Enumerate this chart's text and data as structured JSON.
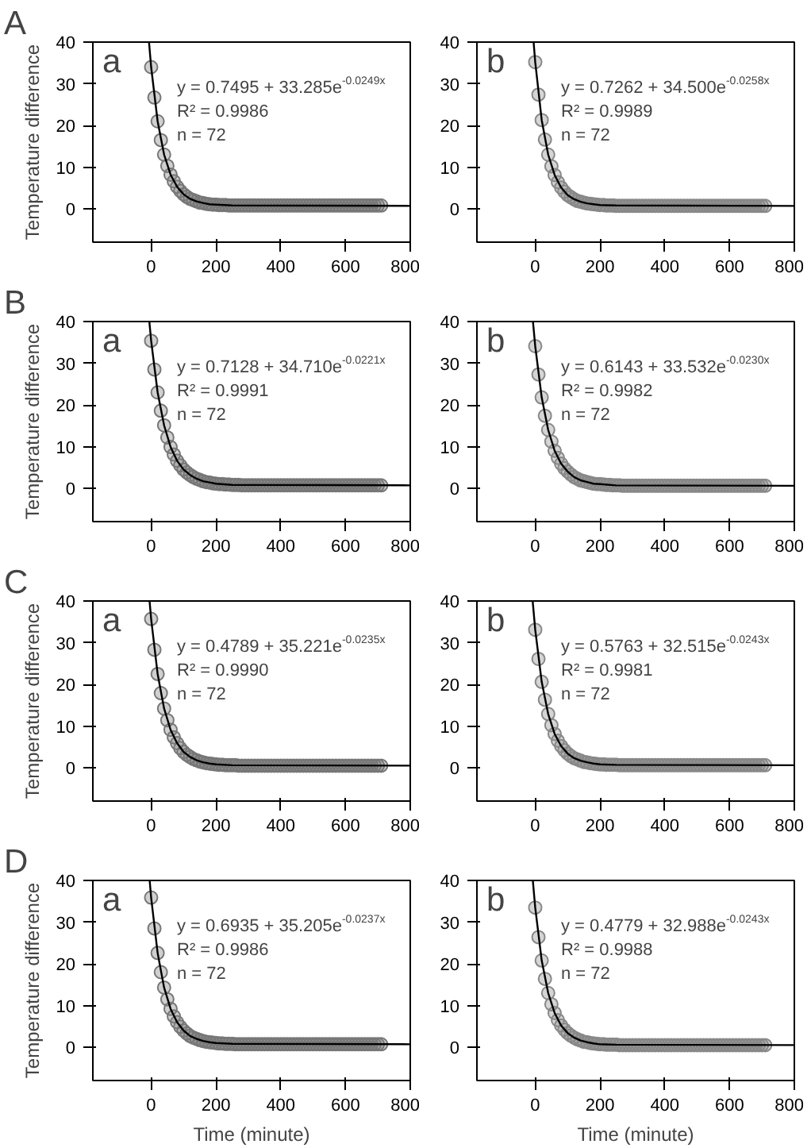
{
  "chart_data": [
    {
      "type": "scatter",
      "title": "a",
      "subtitle": "A",
      "ylabel": "Temperature difference",
      "marker": "circle",
      "xlim": [
        -180,
        800
      ],
      "ylim": [
        -8,
        40
      ],
      "xticks": [
        0,
        200,
        400,
        600,
        800
      ],
      "yticks": [
        0,
        10,
        20,
        30,
        40
      ],
      "x": [
        0,
        10,
        20,
        30,
        40,
        50,
        60,
        70,
        80,
        90,
        100,
        110,
        120,
        130,
        140,
        150,
        160,
        170,
        180,
        190,
        200,
        210,
        220,
        230,
        240,
        250,
        260,
        270,
        280,
        290,
        300,
        310,
        320,
        330,
        340,
        350,
        360,
        370,
        380,
        390,
        400,
        410,
        420,
        430,
        440,
        450,
        460,
        470,
        480,
        490,
        500,
        510,
        520,
        530,
        540,
        550,
        560,
        570,
        580,
        590,
        600,
        610,
        620,
        630,
        640,
        650,
        660,
        670,
        680,
        690,
        700,
        710
      ],
      "series": [
        {
          "color": "#777777",
          "values": [
            34.0,
            26.7,
            21.0,
            16.5,
            13.0,
            10.3,
            8.2,
            6.6,
            5.3,
            4.3,
            3.5,
            2.9,
            2.4,
            2.1,
            1.8,
            1.5,
            1.4,
            1.2,
            1.1,
            1.0,
            1.0,
            0.9,
            0.9,
            0.9,
            0.8,
            0.8,
            0.8,
            0.8,
            0.8,
            0.8,
            0.8,
            0.8,
            0.8,
            0.8,
            0.8,
            0.8,
            0.8,
            0.8,
            0.8,
            0.8,
            0.8,
            0.8,
            0.8,
            0.8,
            0.8,
            0.8,
            0.8,
            0.8,
            0.8,
            0.8,
            0.8,
            0.8,
            0.8,
            0.8,
            0.8,
            0.8,
            0.8,
            0.8,
            0.8,
            0.8,
            0.8,
            0.8,
            0.8,
            0.8,
            0.8,
            0.8,
            0.8,
            0.8,
            0.8,
            0.8,
            0.8,
            0.8
          ]
        },
        {
          "type": "line",
          "marker": "none",
          "color": "#000000",
          "x": [
            -6.6,
            0,
            20,
            40,
            60,
            80,
            100,
            120,
            140,
            160,
            180,
            200,
            250,
            800
          ],
          "values": [
            40,
            34.0,
            21.0,
            13.0,
            8.2,
            5.3,
            3.5,
            2.4,
            1.8,
            1.4,
            1.1,
            1.0,
            0.8,
            0.7
          ]
        }
      ],
      "annotations": [
        "y = 0.7495 + 33.285e$^{-0.0249x}$",
        "R² = 0.9986",
        "n = 72"
      ]
    },
    {
      "type": "scatter",
      "title": "b",
      "marker": "circle",
      "xlim": [
        -180,
        800
      ],
      "ylim": [
        -8,
        40
      ],
      "xticks": [
        0,
        200,
        400,
        600,
        800
      ],
      "yticks": [
        0,
        10,
        20,
        30,
        40
      ],
      "x": [
        0,
        10,
        20,
        30,
        40,
        50,
        60,
        70,
        80,
        90,
        100,
        110,
        120,
        130,
        140,
        150,
        160,
        170,
        180,
        190,
        200,
        210,
        220,
        230,
        240,
        250,
        260,
        270,
        280,
        290,
        300,
        310,
        320,
        330,
        340,
        350,
        360,
        370,
        380,
        390,
        400,
        410,
        420,
        430,
        440,
        450,
        460,
        470,
        480,
        490,
        500,
        510,
        520,
        530,
        540,
        550,
        560,
        570,
        580,
        590,
        600,
        610,
        620,
        630,
        640,
        650,
        660,
        670,
        680,
        690,
        700,
        710
      ],
      "series": [
        {
          "color": "#888888",
          "values": [
            35.2,
            27.4,
            21.3,
            16.6,
            13.0,
            10.2,
            8.1,
            6.4,
            5.1,
            4.1,
            3.3,
            2.8,
            2.3,
            1.9,
            1.7,
            1.5,
            1.3,
            1.2,
            1.1,
            1.0,
            0.9,
            0.9,
            0.8,
            0.8,
            0.8,
            0.7,
            0.7,
            0.7,
            0.7,
            0.7,
            0.7,
            0.7,
            0.7,
            0.7,
            0.7,
            0.7,
            0.7,
            0.7,
            0.7,
            0.7,
            0.7,
            0.7,
            0.7,
            0.7,
            0.7,
            0.7,
            0.7,
            0.7,
            0.7,
            0.7,
            0.7,
            0.7,
            0.7,
            0.7,
            0.7,
            0.7,
            0.7,
            0.7,
            0.7,
            0.7,
            0.7,
            0.7,
            0.7,
            0.7,
            0.7,
            0.7,
            0.7,
            0.7,
            0.7,
            0.7,
            0.7,
            0.7
          ]
        },
        {
          "type": "line",
          "marker": "none",
          "color": "#000000",
          "x": [
            -5.0,
            0,
            20,
            40,
            60,
            80,
            100,
            120,
            140,
            160,
            180,
            200,
            250,
            800
          ],
          "values": [
            40,
            35.2,
            21.3,
            13.0,
            8.1,
            5.1,
            3.3,
            2.3,
            1.7,
            1.3,
            1.1,
            0.9,
            0.8,
            0.7
          ]
        }
      ],
      "annotations": [
        "y = 0.7262 + 34.500e$^{-0.0258x}$",
        "R² = 0.9989",
        "n = 72"
      ]
    },
    {
      "type": "scatter",
      "title": "a",
      "subtitle": "B",
      "ylabel": "Temperature difference",
      "marker": "circle",
      "xlim": [
        -180,
        800
      ],
      "ylim": [
        -8,
        40
      ],
      "xticks": [
        0,
        200,
        400,
        600,
        800
      ],
      "yticks": [
        0,
        10,
        20,
        30,
        40
      ],
      "x": [
        0,
        10,
        20,
        30,
        40,
        50,
        60,
        70,
        80,
        90,
        100,
        110,
        120,
        130,
        140,
        150,
        160,
        170,
        180,
        190,
        200,
        210,
        220,
        230,
        240,
        250,
        260,
        270,
        280,
        290,
        300,
        310,
        320,
        330,
        340,
        350,
        360,
        370,
        380,
        390,
        400,
        410,
        420,
        430,
        440,
        450,
        460,
        470,
        480,
        490,
        500,
        510,
        520,
        530,
        540,
        550,
        560,
        570,
        580,
        590,
        600,
        610,
        620,
        630,
        640,
        650,
        660,
        670,
        680,
        690,
        700,
        710
      ],
      "series": [
        {
          "color": "#777777",
          "values": [
            35.4,
            28.5,
            23.0,
            18.6,
            15.1,
            12.2,
            9.9,
            8.1,
            6.6,
            5.5,
            4.5,
            3.8,
            3.2,
            2.7,
            2.3,
            2.0,
            1.7,
            1.5,
            1.4,
            1.2,
            1.1,
            1.0,
            1.0,
            0.9,
            0.9,
            0.8,
            0.8,
            0.8,
            0.7,
            0.7,
            0.7,
            0.7,
            0.7,
            0.7,
            0.7,
            0.7,
            0.7,
            0.7,
            0.7,
            0.7,
            0.7,
            0.7,
            0.7,
            0.7,
            0.7,
            0.7,
            0.7,
            0.7,
            0.7,
            0.7,
            0.7,
            0.7,
            0.7,
            0.7,
            0.7,
            0.7,
            0.7,
            0.7,
            0.7,
            0.7,
            0.7,
            0.7,
            0.7,
            0.7,
            0.7,
            0.7,
            0.7,
            0.7,
            0.7,
            0.7,
            0.7,
            0.7
          ]
        },
        {
          "type": "line",
          "marker": "none",
          "color": "#000000",
          "x": [
            -5.6,
            0,
            20,
            40,
            60,
            80,
            100,
            120,
            140,
            160,
            180,
            200,
            250,
            800
          ],
          "values": [
            40,
            35.4,
            23.0,
            15.1,
            9.9,
            6.6,
            4.5,
            3.2,
            2.3,
            1.7,
            1.4,
            1.1,
            0.8,
            0.7
          ]
        }
      ],
      "annotations": [
        "y = 0.7128 + 34.710e$^{-0.0221x}$",
        "R² = 0.9991",
        "n = 72"
      ]
    },
    {
      "type": "scatter",
      "title": "b",
      "marker": "circle",
      "xlim": [
        -180,
        800
      ],
      "ylim": [
        -8,
        40
      ],
      "xticks": [
        0,
        200,
        400,
        600,
        800
      ],
      "yticks": [
        0,
        10,
        20,
        30,
        40
      ],
      "x": [
        0,
        10,
        20,
        30,
        40,
        50,
        60,
        70,
        80,
        90,
        100,
        110,
        120,
        130,
        140,
        150,
        160,
        170,
        180,
        190,
        200,
        210,
        220,
        230,
        240,
        250,
        260,
        270,
        280,
        290,
        300,
        310,
        320,
        330,
        340,
        350,
        360,
        370,
        380,
        390,
        400,
        410,
        420,
        430,
        440,
        450,
        460,
        470,
        480,
        490,
        500,
        510,
        520,
        530,
        540,
        550,
        560,
        570,
        580,
        590,
        600,
        610,
        620,
        630,
        640,
        650,
        660,
        670,
        680,
        690,
        700,
        710
      ],
      "series": [
        {
          "color": "#888888",
          "values": [
            34.1,
            27.3,
            21.8,
            17.4,
            14.0,
            11.2,
            9.0,
            7.3,
            5.9,
            4.8,
            4.0,
            3.3,
            2.7,
            2.3,
            1.9,
            1.7,
            1.5,
            1.3,
            1.1,
            1.0,
            1.0,
            0.9,
            0.8,
            0.8,
            0.7,
            0.7,
            0.7,
            0.6,
            0.6,
            0.6,
            0.6,
            0.6,
            0.6,
            0.6,
            0.6,
            0.6,
            0.6,
            0.6,
            0.6,
            0.6,
            0.6,
            0.6,
            0.6,
            0.6,
            0.6,
            0.6,
            0.6,
            0.6,
            0.6,
            0.6,
            0.6,
            0.6,
            0.6,
            0.6,
            0.6,
            0.6,
            0.6,
            0.6,
            0.6,
            0.6,
            0.6,
            0.6,
            0.6,
            0.6,
            0.6,
            0.6,
            0.6,
            0.6,
            0.6,
            0.6,
            0.6,
            0.6
          ]
        },
        {
          "type": "line",
          "marker": "none",
          "color": "#000000",
          "x": [
            -7.0,
            0,
            20,
            40,
            60,
            80,
            100,
            120,
            140,
            160,
            180,
            200,
            250,
            800
          ],
          "values": [
            40,
            34.1,
            21.8,
            14.0,
            9.0,
            5.9,
            4.0,
            2.7,
            1.9,
            1.5,
            1.1,
            1.0,
            0.7,
            0.6
          ]
        }
      ],
      "annotations": [
        "y = 0.6143 + 33.532e$^{-0.0230x}$",
        "R² = 0.9982",
        "n = 72"
      ]
    },
    {
      "type": "scatter",
      "title": "a",
      "subtitle": "C",
      "ylabel": "Temperature difference",
      "marker": "circle",
      "xlim": [
        -180,
        800
      ],
      "ylim": [
        -8,
        40
      ],
      "xticks": [
        0,
        200,
        400,
        600,
        800
      ],
      "yticks": [
        0,
        10,
        20,
        30,
        40
      ],
      "x": [
        0,
        10,
        20,
        30,
        40,
        50,
        60,
        70,
        80,
        90,
        100,
        110,
        120,
        130,
        140,
        150,
        160,
        170,
        180,
        190,
        200,
        210,
        220,
        230,
        240,
        250,
        260,
        270,
        280,
        290,
        300,
        310,
        320,
        330,
        340,
        350,
        360,
        370,
        380,
        390,
        400,
        410,
        420,
        430,
        440,
        450,
        460,
        470,
        480,
        490,
        500,
        510,
        520,
        530,
        540,
        550,
        560,
        570,
        580,
        590,
        600,
        610,
        620,
        630,
        640,
        650,
        660,
        670,
        680,
        690,
        700,
        710
      ],
      "series": [
        {
          "color": "#777777",
          "values": [
            35.7,
            28.3,
            22.5,
            17.9,
            14.2,
            11.4,
            9.1,
            7.3,
            5.9,
            4.7,
            3.8,
            3.1,
            2.6,
            2.1,
            1.8,
            1.5,
            1.3,
            1.1,
            1.0,
            0.9,
            0.8,
            0.7,
            0.7,
            0.6,
            0.6,
            0.6,
            0.6,
            0.5,
            0.5,
            0.5,
            0.5,
            0.5,
            0.5,
            0.5,
            0.5,
            0.5,
            0.5,
            0.5,
            0.5,
            0.5,
            0.5,
            0.5,
            0.5,
            0.5,
            0.5,
            0.5,
            0.5,
            0.5,
            0.5,
            0.5,
            0.5,
            0.5,
            0.5,
            0.5,
            0.5,
            0.5,
            0.5,
            0.5,
            0.5,
            0.5,
            0.5,
            0.5,
            0.5,
            0.5,
            0.5,
            0.5,
            0.5,
            0.5,
            0.5,
            0.5,
            0.5,
            0.5
          ]
        },
        {
          "type": "line",
          "marker": "none",
          "color": "#000000",
          "x": [
            -4.9,
            0,
            20,
            40,
            60,
            80,
            100,
            120,
            140,
            160,
            180,
            200,
            250,
            800
          ],
          "values": [
            40,
            35.7,
            22.5,
            14.2,
            9.1,
            5.9,
            3.8,
            2.6,
            1.8,
            1.3,
            1.0,
            0.8,
            0.6,
            0.5
          ]
        }
      ],
      "annotations": [
        "y = 0.4789 + 35.221e$^{-0.0235x}$",
        "R² = 0.9990",
        "n = 72"
      ]
    },
    {
      "type": "scatter",
      "title": "b",
      "marker": "circle",
      "xlim": [
        -180,
        800
      ],
      "ylim": [
        -8,
        40
      ],
      "xticks": [
        0,
        200,
        400,
        600,
        800
      ],
      "yticks": [
        0,
        10,
        20,
        30,
        40
      ],
      "x": [
        0,
        10,
        20,
        30,
        40,
        50,
        60,
        70,
        80,
        90,
        100,
        110,
        120,
        130,
        140,
        150,
        160,
        170,
        180,
        190,
        200,
        210,
        220,
        230,
        240,
        250,
        260,
        270,
        280,
        290,
        300,
        310,
        320,
        330,
        340,
        350,
        360,
        370,
        380,
        390,
        400,
        410,
        420,
        430,
        440,
        450,
        460,
        470,
        480,
        490,
        500,
        510,
        520,
        530,
        540,
        550,
        560,
        570,
        580,
        590,
        600,
        610,
        620,
        630,
        640,
        650,
        660,
        670,
        680,
        690,
        700,
        710
      ],
      "series": [
        {
          "color": "#888888",
          "values": [
            33.1,
            26.1,
            20.6,
            16.3,
            12.9,
            10.2,
            8.1,
            6.5,
            5.2,
            4.2,
            3.4,
            2.8,
            2.3,
            2.0,
            1.7,
            1.4,
            1.3,
            1.1,
            1.0,
            0.9,
            0.8,
            0.8,
            0.7,
            0.7,
            0.7,
            0.7,
            0.6,
            0.6,
            0.6,
            0.6,
            0.6,
            0.6,
            0.6,
            0.6,
            0.6,
            0.6,
            0.6,
            0.6,
            0.6,
            0.6,
            0.6,
            0.6,
            0.6,
            0.6,
            0.6,
            0.6,
            0.6,
            0.6,
            0.6,
            0.6,
            0.6,
            0.6,
            0.6,
            0.6,
            0.6,
            0.6,
            0.6,
            0.6,
            0.6,
            0.6,
            0.6,
            0.6,
            0.6,
            0.6,
            0.6,
            0.6,
            0.6,
            0.6,
            0.6,
            0.6,
            0.6,
            0.6
          ]
        },
        {
          "type": "line",
          "marker": "none",
          "color": "#000000",
          "x": [
            -7.9,
            0,
            20,
            40,
            60,
            80,
            100,
            120,
            140,
            160,
            180,
            200,
            250,
            800
          ],
          "values": [
            40,
            33.1,
            20.6,
            12.9,
            8.1,
            5.2,
            3.4,
            2.3,
            1.7,
            1.3,
            1.0,
            0.8,
            0.7,
            0.6
          ]
        }
      ],
      "annotations": [
        "y = 0.5763 + 32.515e$^{-0.0243x}$",
        "R² = 0.9981",
        "n = 72"
      ]
    },
    {
      "type": "scatter",
      "title": "a",
      "subtitle": "D",
      "xlabel": "Time (minute)",
      "ylabel": "Temperature difference",
      "marker": "circle",
      "xlim": [
        -180,
        800
      ],
      "ylim": [
        -8,
        40
      ],
      "xticks": [
        0,
        200,
        400,
        600,
        800
      ],
      "yticks": [
        0,
        10,
        20,
        30,
        40
      ],
      "x": [
        0,
        10,
        20,
        30,
        40,
        50,
        60,
        70,
        80,
        90,
        100,
        110,
        120,
        130,
        140,
        150,
        160,
        170,
        180,
        190,
        200,
        210,
        220,
        230,
        240,
        250,
        260,
        270,
        280,
        290,
        300,
        310,
        320,
        330,
        340,
        350,
        360,
        370,
        380,
        390,
        400,
        410,
        420,
        430,
        440,
        450,
        460,
        470,
        480,
        490,
        500,
        510,
        520,
        530,
        540,
        550,
        560,
        570,
        580,
        590,
        600,
        610,
        620,
        630,
        640,
        650,
        660,
        670,
        680,
        690,
        700,
        710
      ],
      "series": [
        {
          "color": "#777777",
          "values": [
            35.9,
            28.5,
            22.6,
            18.0,
            14.3,
            11.5,
            9.2,
            7.4,
            6.0,
            4.9,
            4.0,
            3.3,
            2.7,
            2.3,
            2.0,
            1.7,
            1.5,
            1.3,
            1.2,
            1.1,
            1.0,
            0.9,
            0.9,
            0.8,
            0.8,
            0.8,
            0.7,
            0.7,
            0.7,
            0.7,
            0.7,
            0.7,
            0.7,
            0.7,
            0.7,
            0.7,
            0.7,
            0.7,
            0.7,
            0.7,
            0.7,
            0.7,
            0.7,
            0.7,
            0.7,
            0.7,
            0.7,
            0.7,
            0.7,
            0.7,
            0.7,
            0.7,
            0.7,
            0.7,
            0.7,
            0.7,
            0.7,
            0.7,
            0.7,
            0.7,
            0.7,
            0.7,
            0.7,
            0.7,
            0.7,
            0.7,
            0.7,
            0.7,
            0.7,
            0.7,
            0.7,
            0.7
          ]
        },
        {
          "type": "line",
          "marker": "none",
          "color": "#000000",
          "x": [
            -4.6,
            0,
            20,
            40,
            60,
            80,
            100,
            120,
            140,
            160,
            180,
            200,
            250,
            800
          ],
          "values": [
            40,
            35.9,
            22.6,
            14.3,
            9.2,
            6.0,
            4.0,
            2.7,
            2.0,
            1.5,
            1.2,
            1.0,
            0.8,
            0.7
          ]
        }
      ],
      "annotations": [
        "y = 0.6935 + 35.205e$^{-0.0237x}$",
        "R² = 0.9986",
        "n = 72"
      ]
    },
    {
      "type": "scatter",
      "title": "b",
      "xlabel": "Time (minute)",
      "marker": "circle",
      "xlim": [
        -180,
        800
      ],
      "ylim": [
        -8,
        40
      ],
      "xticks": [
        0,
        200,
        400,
        600,
        800
      ],
      "yticks": [
        0,
        10,
        20,
        30,
        40
      ],
      "x": [
        0,
        10,
        20,
        30,
        40,
        50,
        60,
        70,
        80,
        90,
        100,
        110,
        120,
        130,
        140,
        150,
        160,
        170,
        180,
        190,
        200,
        210,
        220,
        230,
        240,
        250,
        260,
        270,
        280,
        290,
        300,
        310,
        320,
        330,
        340,
        350,
        360,
        370,
        380,
        390,
        400,
        410,
        420,
        430,
        440,
        450,
        460,
        470,
        480,
        490,
        500,
        510,
        520,
        530,
        540,
        550,
        560,
        570,
        580,
        590,
        600,
        610,
        620,
        630,
        640,
        650,
        660,
        670,
        680,
        690,
        700,
        710
      ],
      "series": [
        {
          "color": "#888888",
          "values": [
            33.5,
            26.4,
            20.8,
            16.4,
            13.0,
            10.3,
            8.2,
            6.5,
            5.2,
            4.2,
            3.4,
            2.8,
            2.3,
            1.9,
            1.6,
            1.3,
            1.2,
            1.0,
            0.9,
            0.8,
            0.7,
            0.7,
            0.6,
            0.6,
            0.6,
            0.6,
            0.5,
            0.5,
            0.5,
            0.5,
            0.5,
            0.5,
            0.5,
            0.5,
            0.5,
            0.5,
            0.5,
            0.5,
            0.5,
            0.5,
            0.5,
            0.5,
            0.5,
            0.5,
            0.5,
            0.5,
            0.5,
            0.5,
            0.5,
            0.5,
            0.5,
            0.5,
            0.5,
            0.5,
            0.5,
            0.5,
            0.5,
            0.5,
            0.5,
            0.5,
            0.5,
            0.5,
            0.5,
            0.5,
            0.5,
            0.5,
            0.5,
            0.5,
            0.5,
            0.5,
            0.5,
            0.5
          ]
        },
        {
          "type": "line",
          "marker": "none",
          "color": "#000000",
          "x": [
            -7.4,
            0,
            20,
            40,
            60,
            80,
            100,
            120,
            140,
            160,
            180,
            200,
            250,
            800
          ],
          "values": [
            40,
            33.5,
            20.8,
            13.0,
            8.2,
            5.2,
            3.4,
            2.3,
            1.6,
            1.2,
            0.9,
            0.7,
            0.6,
            0.5
          ]
        }
      ],
      "annotations": [
        "y = 0.4779 + 32.988e$^{-0.0243x}$",
        "R² = 0.9988",
        "n = 72"
      ]
    }
  ]
}
